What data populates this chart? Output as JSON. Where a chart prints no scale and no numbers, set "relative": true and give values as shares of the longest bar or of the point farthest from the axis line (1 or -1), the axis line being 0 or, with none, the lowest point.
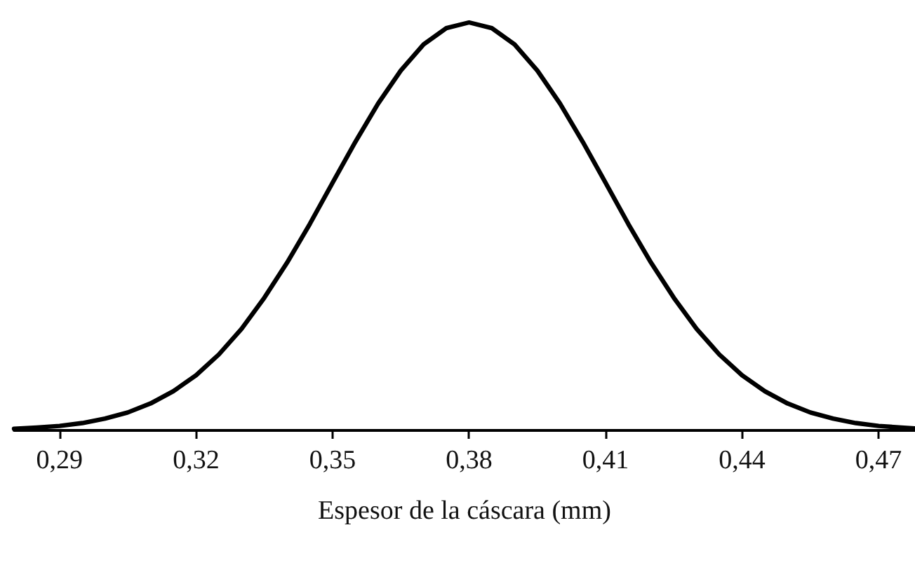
{
  "chart_data": {
    "type": "line",
    "relative": true,
    "xlabel": "Espesor de la cáscara (mm)",
    "x": [
      0.28,
      0.285,
      0.29,
      0.295,
      0.3,
      0.305,
      0.31,
      0.315,
      0.32,
      0.325,
      0.33,
      0.335,
      0.34,
      0.345,
      0.35,
      0.355,
      0.36,
      0.365,
      0.37,
      0.375,
      0.38,
      0.385,
      0.39,
      0.395,
      0.4,
      0.405,
      0.41,
      0.415,
      0.42,
      0.425,
      0.43,
      0.435,
      0.44,
      0.445,
      0.45,
      0.455,
      0.46,
      0.465,
      0.47,
      0.475,
      0.478
    ],
    "series": [
      {
        "color": "#000000",
        "values": [
          0.004,
          0.007,
          0.011,
          0.018,
          0.029,
          0.044,
          0.066,
          0.096,
          0.135,
          0.186,
          0.249,
          0.325,
          0.411,
          0.506,
          0.607,
          0.707,
          0.801,
          0.882,
          0.946,
          0.986,
          1,
          0.986,
          0.946,
          0.882,
          0.801,
          0.707,
          0.607,
          0.506,
          0.411,
          0.325,
          0.249,
          0.186,
          0.135,
          0.096,
          0.066,
          0.044,
          0.029,
          0.018,
          0.011,
          0.007,
          0.005
        ]
      }
    ],
    "xlim": [
      0.28,
      0.478
    ],
    "xticks": [
      {
        "value": 0.29,
        "label": "0,29"
      },
      {
        "value": 0.32,
        "label": "0,32"
      },
      {
        "value": 0.35,
        "label": "0,35"
      },
      {
        "value": 0.38,
        "label": "0,38"
      },
      {
        "value": 0.41,
        "label": "0,41"
      },
      {
        "value": 0.44,
        "label": "0,44"
      },
      {
        "value": 0.47,
        "label": "0,47"
      }
    ],
    "grid": false,
    "marker": "none",
    "line_style": "solid"
  }
}
